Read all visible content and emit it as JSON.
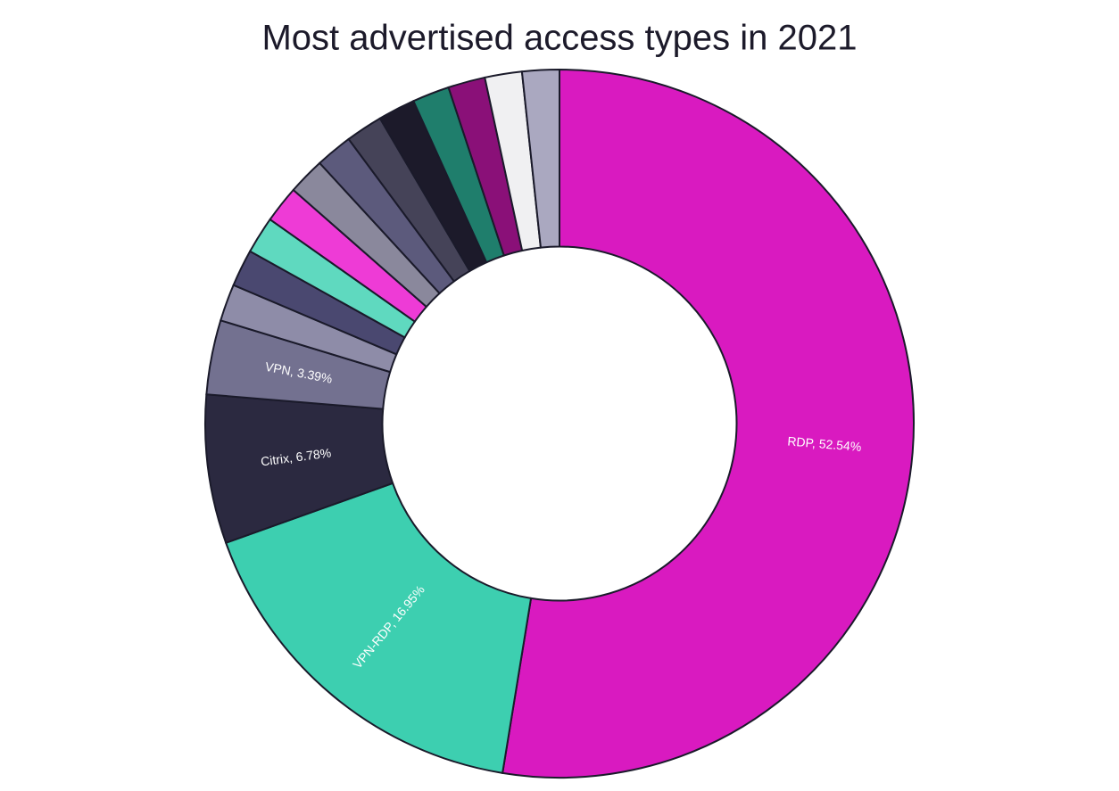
{
  "chart_data": {
    "type": "pie",
    "title": "Most advertised access types in 2021",
    "values": [
      52.54,
      16.95,
      6.78,
      3.39,
      1.69,
      1.69,
      1.69,
      1.69,
      1.69,
      1.69,
      1.69,
      1.69,
      1.69,
      1.69,
      1.69,
      1.69
    ],
    "value_labels": [
      "RDP, 52.54%",
      "VPN-RDP, 16.95%",
      "Citrix, 6.78%",
      "VPN, 3.39%",
      null,
      null,
      null,
      null,
      null,
      null,
      null,
      null,
      null,
      null,
      null,
      null
    ],
    "colors": [
      "#d91ac0",
      "#3dcfb0",
      "#2b2940",
      "#737190",
      "#8e8ca8",
      "#4a4870",
      "#5fd9bf",
      "#ee3bd6",
      "#8a889c",
      "#5c5a7c",
      "#454358",
      "#1c1a2a",
      "#1f7e6c",
      "#8a1078",
      "#f0f0f2",
      "#aaa8c0"
    ],
    "hole": 0.5
  }
}
